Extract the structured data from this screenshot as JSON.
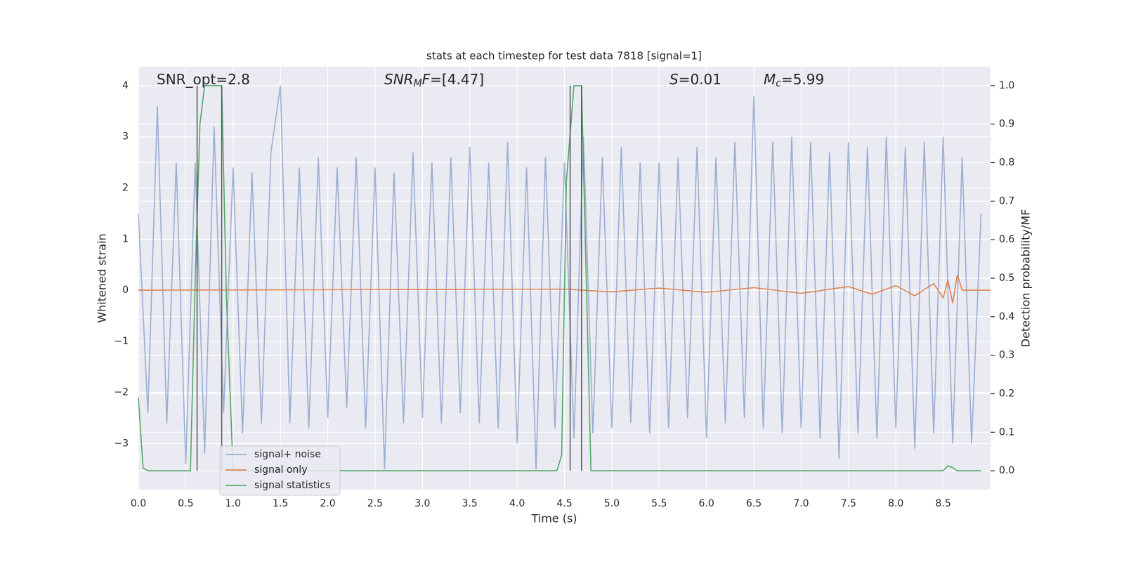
{
  "chart_data": {
    "type": "line",
    "title": "stats at each timestep for test data 7818 [signal=1]",
    "xlabel": "Time (s)",
    "ylabel": "Whitened strain",
    "y2label": "Detection probability/MF",
    "annotations": [
      [
        {
          "t": "SNR_opt=2.8",
          "s": "n"
        }
      ],
      [
        {
          "t": "SNR",
          "s": "i"
        },
        {
          "t": "M",
          "s": "sub"
        },
        {
          "t": "F",
          "s": "i"
        },
        {
          "t": "=[4.47]",
          "s": "n"
        }
      ],
      [
        {
          "t": "S",
          "s": "i"
        },
        {
          "t": "=0.01",
          "s": "n"
        }
      ],
      [
        {
          "t": "M",
          "s": "i"
        },
        {
          "t": "c",
          "s": "sub"
        },
        {
          "t": "=5.99",
          "s": "n"
        }
      ]
    ],
    "xlim": [
      0,
      9
    ],
    "ylim": [
      -3.9,
      4.37
    ],
    "y2lim": [
      -0.049,
      1.049
    ],
    "xticks": [
      {
        "value": 0,
        "label": "0.0"
      },
      0.5,
      {
        "value": 1,
        "label": "1.0"
      },
      1.5,
      {
        "value": 2,
        "label": "2.0"
      },
      2.5,
      {
        "value": 3,
        "label": "3.0"
      },
      3.5,
      {
        "value": 4,
        "label": "4.0"
      },
      4.5,
      {
        "value": 5,
        "label": "5.0"
      },
      5.5,
      {
        "value": 6,
        "label": "6.0"
      },
      6.5,
      {
        "value": 7,
        "label": "7.0"
      },
      7.5,
      {
        "value": 8,
        "label": "8.0"
      },
      8.5
    ],
    "yticks": [
      {
        "value": -3,
        "label": "−3"
      },
      {
        "value": -2,
        "label": "−2"
      },
      {
        "value": -1,
        "label": "−1"
      },
      0,
      1,
      2,
      3,
      4
    ],
    "y2ticks": [
      {
        "value": 0,
        "label": "0.0"
      },
      0.1,
      0.2,
      0.3,
      0.4,
      0.5,
      0.6,
      0.7,
      0.8,
      0.9,
      {
        "value": 1,
        "label": "1.0"
      }
    ],
    "grid": true,
    "legend": "best",
    "vlines": [
      0.62,
      0.88,
      4.56,
      4.68
    ],
    "vline_color": "#555555",
    "series": [
      {
        "name": "signal+ noise",
        "color": "#4c72b0",
        "opacity": 0.5,
        "x": [
          0.0,
          0.1,
          0.2,
          0.3,
          0.4,
          0.5,
          0.6,
          0.7,
          0.8,
          0.9,
          1.0,
          1.1,
          1.2,
          1.3,
          1.4,
          1.5,
          1.6,
          1.7,
          1.8,
          1.9,
          2.0,
          2.1,
          2.2,
          2.3,
          2.4,
          2.5,
          2.6,
          2.7,
          2.8,
          2.9,
          3.0,
          3.1,
          3.2,
          3.3,
          3.4,
          3.5,
          3.6,
          3.7,
          3.8,
          3.9,
          4.0,
          4.1,
          4.2,
          4.3,
          4.4,
          4.5,
          4.6,
          4.7,
          4.8,
          4.9,
          5.0,
          5.1,
          5.2,
          5.3,
          5.4,
          5.5,
          5.6,
          5.7,
          5.8,
          5.9,
          6.0,
          6.1,
          6.2,
          6.3,
          6.4,
          6.5,
          6.6,
          6.7,
          6.8,
          6.9,
          7.0,
          7.1,
          7.2,
          7.3,
          7.4,
          7.5,
          7.6,
          7.7,
          7.8,
          7.9,
          8.0,
          8.1,
          8.2,
          8.3,
          8.4,
          8.5,
          8.6,
          8.7,
          8.8,
          8.9
        ],
        "values": [
          1.5,
          -2.4,
          3.6,
          -2.6,
          2.5,
          -3.4,
          2.5,
          -3.2,
          3.2,
          -2.4,
          2.4,
          -2.8,
          2.3,
          -2.6,
          2.7,
          4.0,
          -2.6,
          2.4,
          -2.7,
          2.6,
          -2.5,
          2.4,
          -2.3,
          2.6,
          -2.7,
          2.4,
          -3.5,
          2.3,
          -2.6,
          2.7,
          -2.5,
          2.5,
          -2.6,
          2.6,
          -2.4,
          2.8,
          -2.6,
          2.5,
          -2.7,
          2.9,
          -3.0,
          2.4,
          -3.5,
          2.6,
          -2.7,
          2.5,
          -2.9,
          3.0,
          -2.8,
          2.6,
          -2.7,
          2.8,
          -2.6,
          2.5,
          -2.8,
          2.5,
          -2.7,
          2.6,
          -2.5,
          2.8,
          -2.9,
          2.6,
          -2.6,
          2.9,
          -2.5,
          3.8,
          -2.7,
          2.9,
          -2.8,
          3.0,
          -2.7,
          2.9,
          -2.9,
          2.7,
          -3.3,
          2.9,
          -2.8,
          2.8,
          -2.9,
          3.0,
          -2.7,
          2.8,
          -3.1,
          2.9,
          -2.8,
          3.0,
          -3.0,
          2.6,
          -3.0,
          1.5
        ]
      },
      {
        "name": "signal only",
        "color": "#dd8452",
        "x": [
          0,
          4.5,
          5.0,
          5.5,
          6.0,
          6.5,
          7.0,
          7.5,
          7.75,
          8.0,
          8.2,
          8.4,
          8.5,
          8.55,
          8.6,
          8.65,
          8.7,
          9.0
        ],
        "values": [
          0,
          0.02,
          -0.03,
          0.04,
          -0.04,
          0.05,
          -0.06,
          0.07,
          -0.08,
          0.09,
          -0.11,
          0.13,
          -0.15,
          0.2,
          -0.25,
          0.3,
          0,
          0
        ]
      },
      {
        "name": "signal statistics",
        "color": "#55a868",
        "axis": "y2",
        "x": [
          0,
          0.05,
          0.1,
          0.55,
          0.6,
          0.65,
          0.7,
          0.88,
          0.93,
          1.0,
          4.42,
          4.47,
          4.52,
          4.6,
          4.68,
          4.78,
          8.5,
          8.55,
          8.6,
          8.65,
          8.9
        ],
        "values": [
          0.19,
          0.007,
          0,
          0,
          0.5,
          0.9,
          1.0,
          1.0,
          0.45,
          0,
          0,
          0.04,
          0.75,
          1.0,
          1.0,
          0,
          0,
          0.013,
          0.008,
          0,
          0
        ]
      }
    ]
  }
}
